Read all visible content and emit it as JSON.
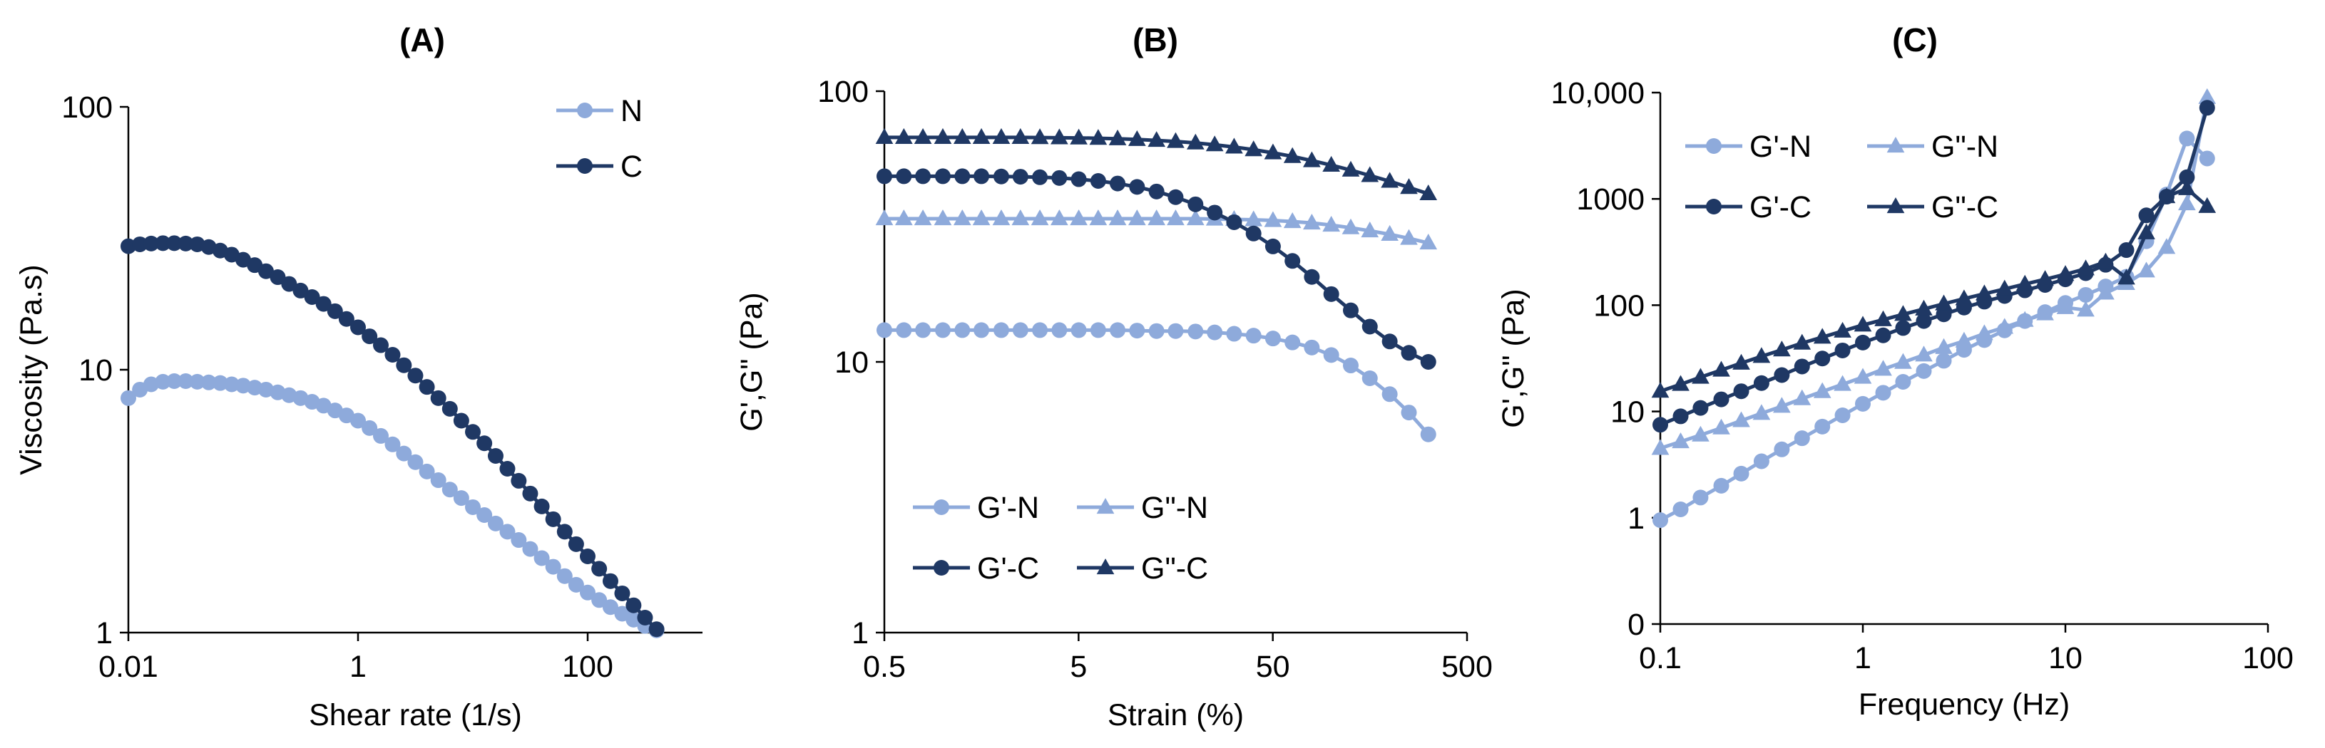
{
  "colors": {
    "light": "#8eaadb",
    "dark": "#1f3864"
  },
  "chart_data": [
    {
      "id": "A",
      "type": "line",
      "title": "(A)",
      "xlabel": "Shear rate (1/s)",
      "ylabel": "Viscosity (Pa.s)",
      "xscale": "log",
      "yscale": "log",
      "xlim": [
        0.01,
        1000
      ],
      "ylim": [
        1,
        100
      ],
      "xticks": [
        0.01,
        1,
        100
      ],
      "xtick_labels": [
        "0.01",
        "1",
        "100"
      ],
      "yticks": [
        1,
        10,
        100
      ],
      "ytick_labels": [
        "1",
        "10",
        "100"
      ],
      "legend": "top-right",
      "series": [
        {
          "name": "N",
          "marker": "circle",
          "color": "light",
          "x": [
            0.01,
            0.0126,
            0.0158,
            0.02,
            0.0251,
            0.0316,
            0.0398,
            0.0501,
            0.0631,
            0.0794,
            0.1,
            0.126,
            0.158,
            0.2,
            0.251,
            0.316,
            0.398,
            0.501,
            0.631,
            0.794,
            1,
            1.26,
            1.58,
            2,
            2.51,
            3.16,
            3.98,
            5.01,
            6.31,
            7.94,
            10,
            12.6,
            15.8,
            20,
            25.1,
            31.6,
            39.8,
            50.1,
            63.1,
            79.4,
            100,
            126,
            158,
            200,
            251,
            316,
            398
          ],
          "y": [
            7.8,
            8.4,
            8.8,
            9.0,
            9.05,
            9.05,
            9.0,
            8.95,
            8.9,
            8.8,
            8.7,
            8.55,
            8.4,
            8.2,
            8.0,
            7.8,
            7.55,
            7.3,
            7.0,
            6.7,
            6.4,
            6.0,
            5.6,
            5.2,
            4.8,
            4.45,
            4.1,
            3.8,
            3.5,
            3.25,
            3.0,
            2.8,
            2.6,
            2.42,
            2.25,
            2.08,
            1.92,
            1.78,
            1.64,
            1.52,
            1.42,
            1.33,
            1.25,
            1.18,
            1.12,
            1.06,
            1.02
          ]
        },
        {
          "name": "C",
          "marker": "circle",
          "color": "dark",
          "x": [
            0.01,
            0.0126,
            0.0158,
            0.02,
            0.0251,
            0.0316,
            0.0398,
            0.0501,
            0.0631,
            0.0794,
            0.1,
            0.126,
            0.158,
            0.2,
            0.251,
            0.316,
            0.398,
            0.501,
            0.631,
            0.794,
            1,
            1.26,
            1.58,
            2,
            2.51,
            3.16,
            3.98,
            5.01,
            6.31,
            7.94,
            10,
            12.6,
            15.8,
            20,
            25.1,
            31.6,
            39.8,
            50.1,
            63.1,
            79.4,
            100,
            126,
            158,
            200,
            251,
            316,
            398
          ],
          "y": [
            29.5,
            30.0,
            30.2,
            30.3,
            30.3,
            30.2,
            30.0,
            29.3,
            28.4,
            27.4,
            26.2,
            25.0,
            23.7,
            22.5,
            21.2,
            20.0,
            18.9,
            17.8,
            16.7,
            15.6,
            14.5,
            13.4,
            12.4,
            11.4,
            10.4,
            9.5,
            8.6,
            7.8,
            7.1,
            6.4,
            5.8,
            5.25,
            4.7,
            4.2,
            3.78,
            3.38,
            3.02,
            2.7,
            2.42,
            2.17,
            1.95,
            1.75,
            1.57,
            1.41,
            1.27,
            1.14,
            1.03
          ]
        }
      ]
    },
    {
      "id": "B",
      "type": "line",
      "title": "(B)",
      "xlabel": "Strain (%)",
      "ylabel": "G',G\" (Pa)",
      "xscale": "log",
      "yscale": "log",
      "xlim": [
        0.5,
        500
      ],
      "ylim": [
        1,
        100
      ],
      "xticks": [
        0.5,
        5,
        50,
        500
      ],
      "xtick_labels": [
        "0.5",
        "5",
        "50",
        "500"
      ],
      "yticks": [
        1,
        10,
        100
      ],
      "ytick_labels": [
        "1",
        "10",
        "100"
      ],
      "legend": "bottom-left",
      "series": [
        {
          "name": "G'-N",
          "marker": "circle",
          "color": "light",
          "x": [
            0.5,
            0.63,
            0.79,
            1,
            1.26,
            1.58,
            2,
            2.51,
            3.16,
            3.98,
            5.01,
            6.31,
            7.94,
            10,
            12.6,
            15.8,
            20,
            25.1,
            31.6,
            39.8,
            50.1,
            63.1,
            79.4,
            100,
            126,
            158,
            200,
            251,
            316
          ],
          "y": [
            13.1,
            13.1,
            13.1,
            13.1,
            13.1,
            13.1,
            13.1,
            13.1,
            13.1,
            13.1,
            13.1,
            13.1,
            13.1,
            13.05,
            13.0,
            13.0,
            12.95,
            12.85,
            12.7,
            12.5,
            12.2,
            11.8,
            11.3,
            10.6,
            9.7,
            8.7,
            7.6,
            6.5,
            5.4
          ]
        },
        {
          "name": "G\"-N",
          "marker": "triangle",
          "color": "light",
          "x": [
            0.5,
            0.63,
            0.79,
            1,
            1.26,
            1.58,
            2,
            2.51,
            3.16,
            3.98,
            5.01,
            6.31,
            7.94,
            10,
            12.6,
            15.8,
            20,
            25.1,
            31.6,
            39.8,
            50.1,
            63.1,
            79.4,
            100,
            126,
            158,
            200,
            251,
            316
          ],
          "y": [
            33.8,
            33.8,
            33.8,
            33.8,
            33.8,
            33.8,
            33.8,
            33.8,
            33.8,
            33.8,
            33.8,
            33.8,
            33.8,
            33.8,
            33.8,
            33.8,
            33.8,
            33.7,
            33.6,
            33.5,
            33.3,
            33.0,
            32.6,
            32.0,
            31.3,
            30.5,
            29.6,
            28.6,
            27.5
          ]
        },
        {
          "name": "G'-C",
          "marker": "circle",
          "color": "dark",
          "x": [
            0.5,
            0.63,
            0.79,
            1,
            1.26,
            1.58,
            2,
            2.51,
            3.16,
            3.98,
            5.01,
            6.31,
            7.94,
            10,
            12.6,
            15.8,
            20,
            25.1,
            31.6,
            39.8,
            50.1,
            63.1,
            79.4,
            100,
            126,
            158,
            200,
            251,
            316
          ],
          "y": [
            48.5,
            48.5,
            48.5,
            48.5,
            48.5,
            48.5,
            48.4,
            48.3,
            48.1,
            47.8,
            47.3,
            46.6,
            45.6,
            44.3,
            42.6,
            40.6,
            38.2,
            35.6,
            32.8,
            29.8,
            26.7,
            23.6,
            20.6,
            17.8,
            15.5,
            13.5,
            11.9,
            10.8,
            10.0
          ]
        },
        {
          "name": "G\"-C",
          "marker": "triangle",
          "color": "dark",
          "x": [
            0.5,
            0.63,
            0.79,
            1,
            1.26,
            1.58,
            2,
            2.51,
            3.16,
            3.98,
            5.01,
            6.31,
            7.94,
            10,
            12.6,
            15.8,
            20,
            25.1,
            31.6,
            39.8,
            50.1,
            63.1,
            79.4,
            100,
            126,
            158,
            200,
            251,
            316
          ],
          "y": [
            67.5,
            67.5,
            67.5,
            67.5,
            67.5,
            67.5,
            67.5,
            67.5,
            67.4,
            67.3,
            67.2,
            67.0,
            66.7,
            66.3,
            65.8,
            65.2,
            64.4,
            63.4,
            62.2,
            60.8,
            59.2,
            57.4,
            55.4,
            53.3,
            51.1,
            48.8,
            46.5,
            44.1,
            41.8
          ]
        }
      ]
    },
    {
      "id": "C",
      "type": "line",
      "title": "(C)",
      "xlabel": "Frequency (Hz)",
      "ylabel": "G',G\" (Pa)",
      "xscale": "log",
      "yscale": "log",
      "xlim": [
        0.1,
        100
      ],
      "ylim": [
        0.1,
        10000
      ],
      "xticks": [
        0.1,
        1,
        10,
        100
      ],
      "xtick_labels": [
        "0.1",
        "1",
        "10",
        "100"
      ],
      "yticks": [
        0.1,
        1,
        10,
        100,
        1000,
        10000
      ],
      "ytick_labels": [
        "0",
        "1",
        "10",
        "100",
        "1000",
        "10,000"
      ],
      "legend": "top-left",
      "series": [
        {
          "name": "G'-N",
          "marker": "circle",
          "color": "light",
          "x": [
            0.1,
            0.126,
            0.158,
            0.2,
            0.251,
            0.316,
            0.398,
            0.501,
            0.631,
            0.794,
            1,
            1.26,
            1.58,
            2,
            2.51,
            3.16,
            3.98,
            5.01,
            6.31,
            7.94,
            10,
            12.6,
            15.8,
            20,
            25.1,
            31.6,
            39.8,
            50.1
          ],
          "y": [
            0.95,
            1.2,
            1.55,
            2.0,
            2.6,
            3.4,
            4.4,
            5.6,
            7.2,
            9.2,
            11.8,
            15,
            19,
            24,
            30,
            38,
            47,
            58,
            71,
            86,
            105,
            125,
            150,
            185,
            400,
            1100,
            3700,
            2400
          ]
        },
        {
          "name": "G\"-N",
          "marker": "triangle",
          "color": "light",
          "x": [
            0.1,
            0.126,
            0.158,
            0.2,
            0.251,
            0.316,
            0.398,
            0.501,
            0.631,
            0.794,
            1,
            1.26,
            1.58,
            2,
            2.51,
            3.16,
            3.98,
            5.01,
            6.31,
            7.94,
            10,
            12.6,
            15.8,
            20,
            25.1,
            31.6,
            39.8,
            50.1
          ],
          "y": [
            4.5,
            5.2,
            6.0,
            7.0,
            8.2,
            9.6,
            11.2,
            13.2,
            15.4,
            18,
            21,
            25,
            29,
            34,
            40,
            46,
            54,
            62,
            72,
            83,
            95,
            90,
            130,
            160,
            210,
            350,
            900,
            9000
          ]
        },
        {
          "name": "G'-C",
          "marker": "circle",
          "color": "dark",
          "x": [
            0.1,
            0.126,
            0.158,
            0.2,
            0.251,
            0.316,
            0.398,
            0.501,
            0.631,
            0.794,
            1,
            1.26,
            1.58,
            2,
            2.51,
            3.16,
            3.98,
            5.01,
            6.31,
            7.94,
            10,
            12.6,
            15.8,
            20,
            25.1,
            31.6,
            39.8,
            50.1
          ],
          "y": [
            7.5,
            9.0,
            10.8,
            13,
            15.5,
            18.5,
            22,
            26.5,
            31.5,
            37.5,
            44.5,
            52,
            61,
            71,
            82,
            95,
            108,
            122,
            138,
            155,
            175,
            200,
            240,
            330,
            700,
            1050,
            1600,
            7200
          ]
        },
        {
          "name": "G\"-C",
          "marker": "triangle",
          "color": "dark",
          "x": [
            0.1,
            0.126,
            0.158,
            0.2,
            0.251,
            0.316,
            0.398,
            0.501,
            0.631,
            0.794,
            1,
            1.26,
            1.58,
            2,
            2.51,
            3.16,
            3.98,
            5.01,
            6.31,
            7.94,
            10,
            12.6,
            15.8,
            20,
            25.1,
            31.6,
            39.8,
            50.1
          ],
          "y": [
            15.5,
            18,
            21,
            24.5,
            28.5,
            33,
            38,
            44,
            50,
            57,
            65,
            73,
            82,
            92,
            103,
            115,
            128,
            142,
            158,
            175,
            195,
            220,
            255,
            180,
            480,
            1050,
            1250,
            850
          ]
        }
      ]
    }
  ]
}
